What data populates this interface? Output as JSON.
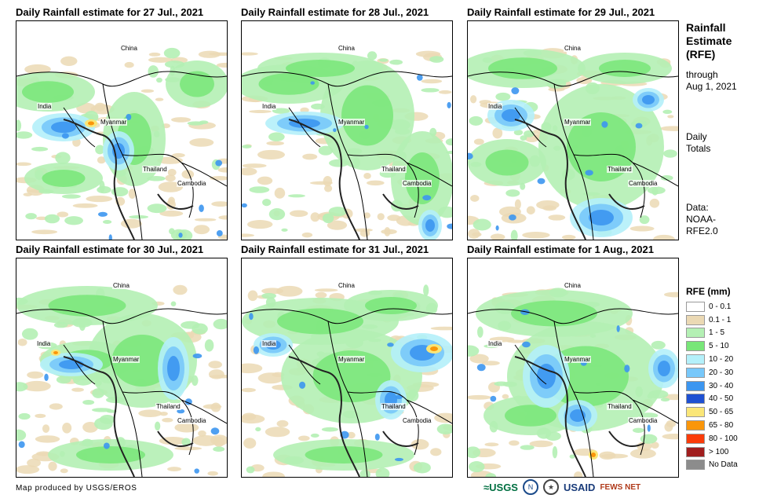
{
  "panels": [
    {
      "title": "Daily Rainfall estimate for 27 Jul., 2021"
    },
    {
      "title": "Daily Rainfall estimate for 28 Jul., 2021"
    },
    {
      "title": "Daily Rainfall estimate for 29 Jul., 2021"
    },
    {
      "title": "Daily Rainfall estimate for 30 Jul., 2021"
    },
    {
      "title": "Daily Rainfall estimate for 31 Jul., 2021"
    },
    {
      "title": "Daily Rainfall estimate for 1 Aug., 2021"
    }
  ],
  "map_labels": {
    "china": "China",
    "india": "India",
    "myanmar": "Myanmar",
    "thailand": "Thailand",
    "cambodia": "Cambodia"
  },
  "side": {
    "title_line1": "Rainfall",
    "title_line2": "Estimate",
    "title_line3": "(RFE)",
    "through": "through",
    "through_date": "Aug 1, 2021",
    "daily": "Daily",
    "totals": "Totals",
    "data_label": "Data:",
    "data_src1": "NOAA-",
    "data_src2": "RFE2.0"
  },
  "legend": {
    "title": "RFE (mm)",
    "items": [
      {
        "label": "0 - 0.1",
        "color": "#ffffff"
      },
      {
        "label": "0.1 - 1",
        "color": "#ebd9b4"
      },
      {
        "label": "1 - 5",
        "color": "#b4f0b4"
      },
      {
        "label": "5 - 10",
        "color": "#78e678"
      },
      {
        "label": "10 - 20",
        "color": "#b4f0fa"
      },
      {
        "label": "20 - 30",
        "color": "#78c8fa"
      },
      {
        "label": "30 - 40",
        "color": "#3c96f0"
      },
      {
        "label": "40 - 50",
        "color": "#1e50d2"
      },
      {
        "label": "50 - 65",
        "color": "#fae678"
      },
      {
        "label": "65 - 80",
        "color": "#fa960a"
      },
      {
        "label": "80 - 100",
        "color": "#fa3c0a"
      },
      {
        "label": "> 100",
        "color": "#a01e1e"
      },
      {
        "label": "No Data",
        "color": "#8c8c8c"
      }
    ]
  },
  "credit": "Map produced by USGS/EROS",
  "logos": {
    "usgs": "≈USGS",
    "usaid": "USAID",
    "fewsnet": "FEWS NET"
  }
}
